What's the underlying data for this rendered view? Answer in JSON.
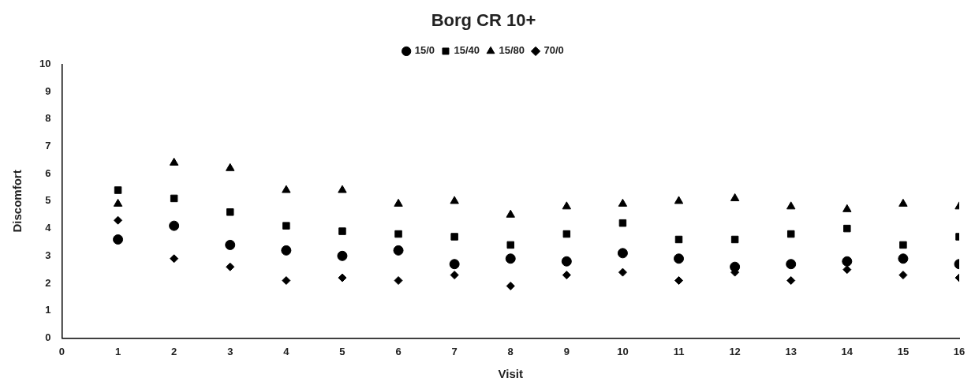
{
  "chart_data": {
    "type": "scatter",
    "title": "Borg CR 10+",
    "xlabel": "Visit",
    "ylabel": "Discomfort",
    "x": [
      1,
      2,
      3,
      4,
      5,
      6,
      7,
      8,
      9,
      10,
      11,
      12,
      13,
      14,
      15,
      16
    ],
    "series": [
      {
        "name": "15/0",
        "color": "#000000",
        "marker": "circle",
        "values": [
          3.6,
          4.1,
          3.4,
          3.2,
          3.0,
          3.2,
          2.7,
          2.9,
          2.8,
          3.1,
          2.9,
          2.6,
          2.7,
          2.8,
          2.9,
          2.7
        ]
      },
      {
        "name": "15/40",
        "color": "#000000",
        "marker": "square",
        "values": [
          5.4,
          5.1,
          4.6,
          4.1,
          3.9,
          3.8,
          3.7,
          3.4,
          3.8,
          4.2,
          3.6,
          3.6,
          3.8,
          4.0,
          3.4,
          3.7
        ]
      },
      {
        "name": "15/80",
        "color": "#000000",
        "marker": "triangle",
        "values": [
          4.9,
          6.4,
          6.2,
          5.4,
          5.4,
          4.9,
          5.0,
          4.5,
          4.8,
          4.9,
          5.0,
          5.1,
          4.8,
          4.7,
          4.9,
          4.8
        ]
      },
      {
        "name": "70/0",
        "color": "#000000",
        "marker": "diamond",
        "values": [
          4.3,
          2.9,
          2.6,
          2.1,
          2.2,
          2.1,
          2.3,
          1.9,
          2.3,
          2.4,
          2.1,
          2.4,
          2.1,
          2.5,
          2.3,
          2.2
        ]
      }
    ],
    "xlim": [
      0,
      16
    ],
    "xticks": [
      0,
      1,
      2,
      3,
      4,
      5,
      6,
      7,
      8,
      9,
      10,
      11,
      12,
      13,
      14,
      15,
      16
    ],
    "ylim": [
      0,
      10
    ],
    "yticks": [
      0,
      1,
      2,
      3,
      4,
      5,
      6,
      7,
      8,
      9,
      10
    ],
    "grid": false,
    "legend": "top"
  }
}
